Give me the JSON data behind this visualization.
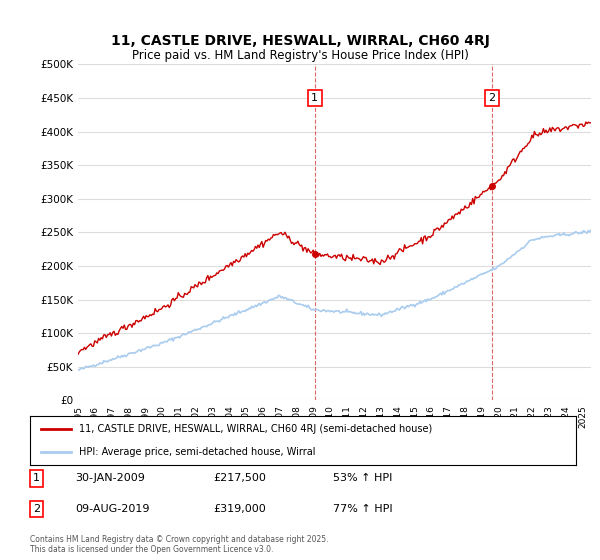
{
  "title_line1": "11, CASTLE DRIVE, HESWALL, WIRRAL, CH60 4RJ",
  "title_line2": "Price paid vs. HM Land Registry's House Price Index (HPI)",
  "legend_property": "11, CASTLE DRIVE, HESWALL, WIRRAL, CH60 4RJ (semi-detached house)",
  "legend_hpi": "HPI: Average price, semi-detached house, Wirral",
  "annotation1_date": "30-JAN-2009",
  "annotation1_price": "£217,500",
  "annotation1_hpi": "53% ↑ HPI",
  "annotation2_date": "09-AUG-2019",
  "annotation2_price": "£319,000",
  "annotation2_hpi": "77% ↑ HPI",
  "footer": "Contains HM Land Registry data © Crown copyright and database right 2025.\nThis data is licensed under the Open Government Licence v3.0.",
  "property_color": "#cc0000",
  "hpi_color": "#aaccee",
  "background_color": "#ffffff",
  "grid_color": "#dddddd",
  "ylim": [
    0,
    500000
  ],
  "yticks": [
    0,
    50000,
    100000,
    150000,
    200000,
    250000,
    300000,
    350000,
    400000,
    450000,
    500000
  ],
  "sale1_year": 2009.08,
  "sale1_price": 217500,
  "sale2_year": 2019.6,
  "sale2_price": 319000,
  "dashed_line_color": "#cc0000"
}
